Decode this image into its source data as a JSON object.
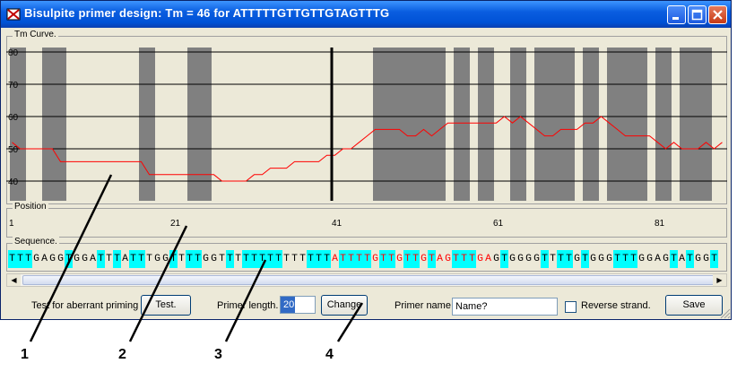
{
  "window": {
    "title": "Bisulpite primer design: Tm = 46 for ATTTTTGTTGTTGTAGTTTG"
  },
  "tm_panel": {
    "label": "Tm Curve.",
    "y_ticks": [
      "80",
      "70",
      "60",
      "50",
      "40"
    ],
    "bands": [
      [
        1,
        2
      ],
      [
        5,
        7
      ],
      [
        17,
        18
      ],
      [
        23,
        25
      ],
      [
        46,
        54
      ],
      [
        56,
        57
      ],
      [
        59,
        60
      ],
      [
        63,
        64
      ],
      [
        66,
        70
      ],
      [
        72,
        73
      ],
      [
        75,
        79
      ],
      [
        81,
        82
      ],
      [
        84,
        87
      ]
    ],
    "cursor_position": 41,
    "tm_values": [
      52,
      50,
      50,
      50,
      50,
      50,
      46,
      46,
      46,
      46,
      46,
      46,
      46,
      46,
      46,
      46,
      46,
      42,
      42,
      42,
      42,
      42,
      42,
      42,
      42,
      42,
      40,
      40,
      40,
      40,
      42,
      42,
      44,
      44,
      44,
      46,
      46,
      46,
      46,
      48,
      48,
      50,
      50,
      52,
      54,
      56,
      56,
      56,
      56,
      54,
      54,
      56,
      54,
      56,
      58,
      58,
      58,
      58,
      58,
      58,
      58,
      60,
      58,
      60,
      58,
      56,
      54,
      54,
      56,
      56,
      56,
      58,
      58,
      60,
      58,
      56,
      54,
      54,
      54,
      54,
      52,
      50,
      52,
      50,
      50,
      50,
      52,
      50,
      52
    ],
    "line_color": "#ff0000",
    "band_color": "#808080",
    "panel_bg": "#ece9d8"
  },
  "position_panel": {
    "label": "Position",
    "ticks": [
      "1",
      "21",
      "41",
      "61",
      "81"
    ]
  },
  "sequence_panel": {
    "label": "Sequence.",
    "bases": [
      "T",
      "T",
      "T",
      "G",
      "A",
      "G",
      "G",
      "T",
      "G",
      "G",
      "A",
      "T",
      "T",
      "T",
      "A",
      "T",
      "T",
      "T",
      "G",
      "G",
      "T",
      "T",
      "T",
      "T",
      "G",
      "G",
      "T",
      "T",
      "T",
      "T",
      "T",
      "T",
      "T",
      "T",
      "T",
      "T",
      "T",
      "T",
      "T",
      "T",
      "A",
      "T",
      "T",
      "T",
      "T",
      "G",
      "T",
      "T",
      "G",
      "T",
      "T",
      "G",
      "T",
      "A",
      "G",
      "T",
      "T",
      "T",
      "G",
      "A",
      "G",
      "T",
      "G",
      "G",
      "G",
      "G",
      "T",
      "T",
      "T",
      "T",
      "G",
      "T",
      "G",
      "G",
      "G",
      "T",
      "T",
      "T",
      "G",
      "G",
      "A",
      "G",
      "T",
      "A",
      "T",
      "G",
      "G",
      "T"
    ],
    "highlight": [
      1,
      1,
      1,
      0,
      0,
      0,
      0,
      1,
      0,
      0,
      0,
      1,
      0,
      1,
      0,
      1,
      1,
      0,
      0,
      0,
      1,
      0,
      1,
      1,
      0,
      0,
      0,
      1,
      0,
      1,
      1,
      1,
      1,
      1,
      0,
      0,
      0,
      1,
      1,
      1,
      0,
      1,
      1,
      1,
      1,
      0,
      1,
      1,
      0,
      1,
      1,
      0,
      1,
      0,
      0,
      1,
      1,
      1,
      0,
      0,
      0,
      1,
      0,
      0,
      0,
      0,
      1,
      0,
      1,
      1,
      0,
      1,
      0,
      0,
      0,
      1,
      1,
      1,
      0,
      0,
      0,
      0,
      1,
      0,
      1,
      0,
      0,
      1
    ],
    "primer_start": 41,
    "primer_length": 20,
    "highlight_color": "#00ffff",
    "primer_text_color": "#ff0000"
  },
  "controls": {
    "aberrant_label": "Test for aberrant priming",
    "test_button": "Test.",
    "primer_length_label": "Primer length.",
    "primer_length_value": "20",
    "change_button": "Change",
    "primer_name_label": "Primer name.",
    "primer_name_value": "Name?",
    "reverse_label": "Reverse strand.",
    "reverse_checked": false,
    "save_button": "Save"
  },
  "callouts": [
    "1",
    "2",
    "3",
    "4"
  ]
}
